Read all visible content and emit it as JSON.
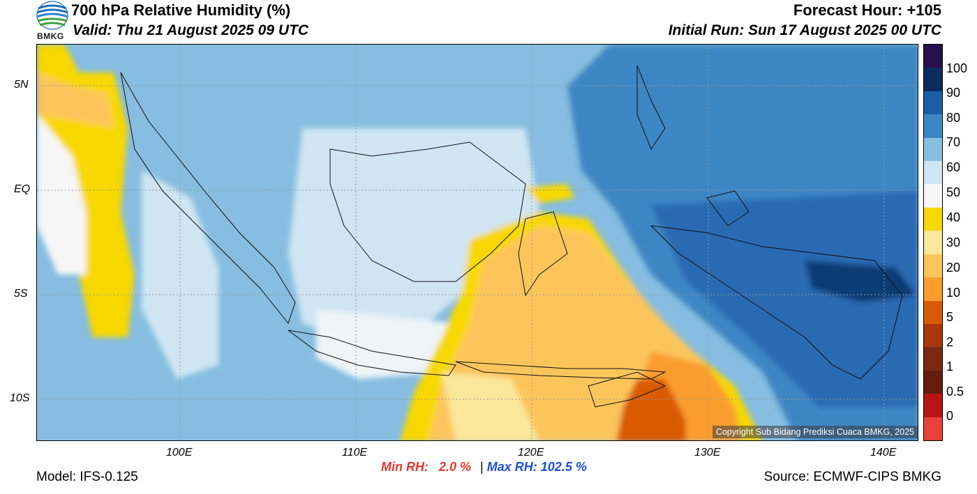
{
  "header": {
    "title": "700 hPa Relative Humidity (%)",
    "valid": "Valid: Thu 21 August 2025 09 UTC",
    "forecast_hour": "Forecast Hour: +105",
    "initial_run": "Initial Run: Sun 17 August 2025 00 UTC",
    "logo_text": "BMKG"
  },
  "map": {
    "lat_ticks": [
      "5N",
      "EQ",
      "5S",
      "10S"
    ],
    "lon_ticks": [
      "100E",
      "110E",
      "120E",
      "130E",
      "140E"
    ],
    "copyright": "Copyright Sub Bidang Prediksi Cuaca BMKG, 2025"
  },
  "colorbar": {
    "labels": [
      "100",
      "90",
      "80",
      "70",
      "60",
      "50",
      "40",
      "30",
      "20",
      "10",
      "5",
      "2",
      "1",
      "0.5",
      "0"
    ],
    "colors": [
      "#2a0f4f",
      "#0b2d5e",
      "#1b5ea8",
      "#3b86c4",
      "#88bfe0",
      "#cfe5f2",
      "#f6f6f6",
      "#f7d800",
      "#fbe79a",
      "#fcc55b",
      "#fb9d2e",
      "#d95a06",
      "#a9360c",
      "#7a2a10",
      "#651c0f",
      "#b71515",
      "#e9423a"
    ]
  },
  "stats": {
    "min_label": "Min RH:",
    "min_value": "2.0 %",
    "separator": "|",
    "max_label": "Max RH:",
    "max_value": "102.5 %"
  },
  "footer": {
    "model": "Model: IFS-0.125",
    "source": "Source: ECMWF-CIPS BMKG"
  }
}
